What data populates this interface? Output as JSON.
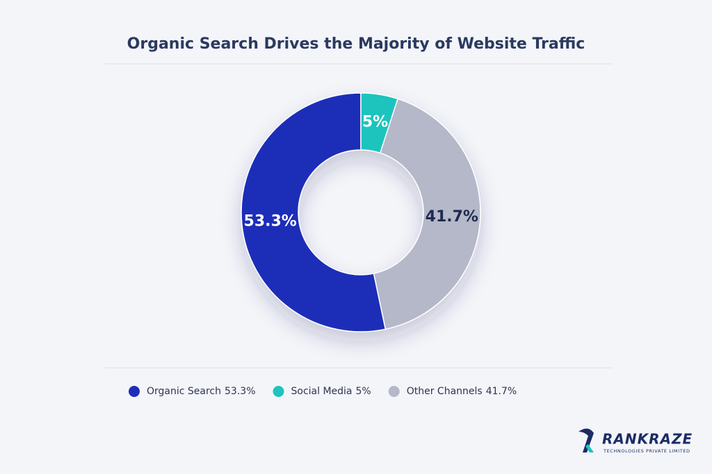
{
  "chart_data": {
    "type": "pie",
    "donut": true,
    "title": "Organic Search Drives the Majority of Website Traffic",
    "categories": [
      "Organic Search",
      "Social Media",
      "Other Channels"
    ],
    "values": [
      53.3,
      5,
      41.7
    ],
    "value_labels": [
      "53.3%",
      "5%",
      "41.7%"
    ],
    "colors": [
      "#1d2fb8",
      "#1ec4bd",
      "#b4b8c9"
    ],
    "label_colors": [
      "#ffffff",
      "#ffffff",
      "#1f2a4f"
    ],
    "legend": "bottom"
  },
  "branding": {
    "name": "RANKRAZE",
    "tagline": "TECHNOLOGIES PRIVATE LIMITED"
  }
}
